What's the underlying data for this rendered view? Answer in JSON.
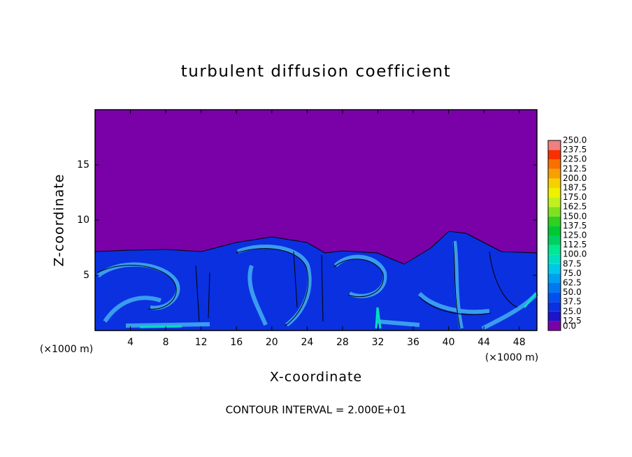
{
  "chart_data": {
    "type": "contour",
    "title": "turbulent diffusion coefficient",
    "x_label": "X-coordinate",
    "y_label": "Z-coordinate",
    "x_unit": "(×1000 m)",
    "note": "CONTOUR INTERVAL = 2.000E+01",
    "xlim": [
      0,
      50
    ],
    "xticks": [
      4,
      8,
      12,
      16,
      20,
      24,
      28,
      32,
      36,
      40,
      44,
      48
    ],
    "ylim": [
      0,
      20
    ],
    "yticks": [
      5,
      10,
      15
    ],
    "colorbar": {
      "levels": [
        {
          "value": 0,
          "label": "0.0"
        },
        12.5,
        {
          "value": 25,
          "label": "25.0"
        },
        37.5,
        {
          "value": 50,
          "label": "50.0"
        },
        62.5,
        {
          "value": 75,
          "label": "75.0"
        },
        87.5,
        {
          "value": 100,
          "label": "100.0"
        },
        112.5,
        {
          "value": 125,
          "label": "125.0"
        },
        137.5,
        {
          "value": 150,
          "label": "150.0"
        },
        162.5,
        {
          "value": 175,
          "label": "175.0"
        },
        187.5,
        {
          "value": 200,
          "label": "200.0"
        },
        212.5,
        {
          "value": 225,
          "label": "225.0"
        },
        237.5,
        {
          "value": 250,
          "label": "250.0"
        }
      ],
      "colors": [
        "#7a00a8",
        "#1e14c8",
        "#0a30e0",
        "#0050f0",
        "#0078f0",
        "#00a0f0",
        "#00c8e8",
        "#00e0c0",
        "#00e890",
        "#00d060",
        "#00c830",
        "#30d020",
        "#80e020",
        "#c0f020",
        "#f0f000",
        "#f8d000",
        "#f8a000",
        "#f87000",
        "#f83000",
        "#f08080"
      ]
    }
  }
}
